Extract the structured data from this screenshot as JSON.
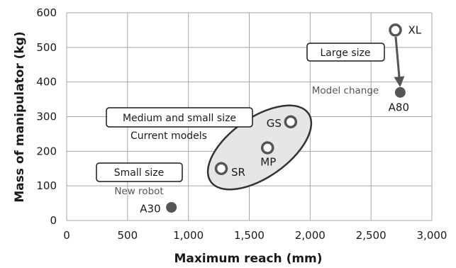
{
  "chart_data": {
    "type": "scatter",
    "xlabel": "Maximum reach (mm)",
    "ylabel": "Mass of manipulator (kg)",
    "xlim": [
      0,
      3000
    ],
    "ylim": [
      0,
      600
    ],
    "x_ticks": [
      0,
      500,
      1000,
      1500,
      2000,
      2500,
      3000
    ],
    "x_tick_labels": [
      "0",
      "500",
      "1,000",
      "1,500",
      "2,000",
      "2,500",
      "3,000"
    ],
    "y_ticks": [
      0,
      100,
      200,
      300,
      400,
      500,
      600
    ],
    "y_tick_labels": [
      "0",
      "100",
      "200",
      "300",
      "400",
      "500",
      "600"
    ],
    "grid": true,
    "points": [
      {
        "label": "XL",
        "x": 2700,
        "y": 550,
        "style": "open"
      },
      {
        "label": "A80",
        "x": 2740,
        "y": 370,
        "style": "filled"
      },
      {
        "label": "GS",
        "x": 1840,
        "y": 285,
        "style": "open"
      },
      {
        "label": "MP",
        "x": 1650,
        "y": 210,
        "style": "open"
      },
      {
        "label": "SR",
        "x": 1270,
        "y": 150,
        "style": "open"
      },
      {
        "label": "A30",
        "x": 860,
        "y": 38,
        "style": "filled"
      }
    ],
    "annotations": {
      "large_box": "Large size",
      "model_change": "Model change",
      "medium_box": "Medium and small size",
      "current_models": "Current models",
      "small_box": "Small size",
      "new_robot": "New robot"
    },
    "colors": {
      "marker": "#555555",
      "ellipse_fill": "#e6e6e6",
      "grid": "#a6a6a6",
      "arrow": "#555555"
    }
  }
}
